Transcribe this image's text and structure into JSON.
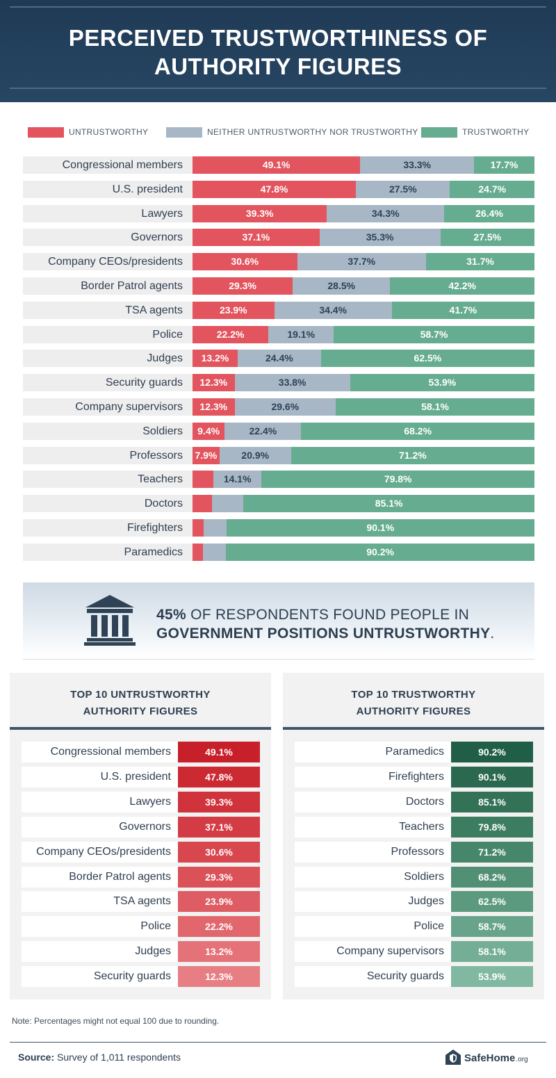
{
  "header": {
    "title_line1": "PERCEIVED TRUSTWORTHINESS OF",
    "title_line2": "AUTHORITY FIGURES"
  },
  "colors": {
    "untrustworthy": "#e2545e",
    "neither": "#a8b7c5",
    "trustworthy": "#66ac91",
    "header": "#1f3a55"
  },
  "chart_data": {
    "type": "bar",
    "orientation": "horizontal",
    "stacked": true,
    "unit": "%",
    "categories": [
      "Congressional members",
      "U.S. president",
      "Lawyers",
      "Governors",
      "Company CEOs/presidents",
      "Border Patrol agents",
      "TSA agents",
      "Police",
      "Judges",
      "Security guards",
      "Company supervisors",
      "Soldiers",
      "Professors",
      "Teachers",
      "Doctors",
      "Firefighters",
      "Paramedics"
    ],
    "series": [
      {
        "name": "UNTRUSTWORTHY",
        "color": "#e2545e",
        "values": [
          49.1,
          47.8,
          39.3,
          37.1,
          30.6,
          29.3,
          23.9,
          22.2,
          13.2,
          12.3,
          12.3,
          9.4,
          7.9,
          6.1,
          5.6,
          3.2,
          3.0
        ],
        "labels": [
          "49.1%",
          "47.8%",
          "39.3%",
          "37.1%",
          "30.6%",
          "29.3%",
          "23.9%",
          "22.2%",
          "13.2%",
          "12.3%",
          "12.3%",
          "9.4%",
          "7.9%",
          "",
          "",
          "",
          ""
        ]
      },
      {
        "name": "NEITHER UNTRUSTWORTHY NOR TRUSTWORTHY",
        "color": "#a8b7c5",
        "values": [
          33.3,
          27.5,
          34.3,
          35.3,
          37.7,
          28.5,
          34.4,
          19.1,
          24.4,
          33.8,
          29.6,
          22.4,
          20.9,
          14.1,
          9.3,
          6.7,
          6.8
        ],
        "labels": [
          "33.3%",
          "27.5%",
          "34.3%",
          "35.3%",
          "37.7%",
          "28.5%",
          "34.4%",
          "19.1%",
          "24.4%",
          "33.8%",
          "29.6%",
          "22.4%",
          "20.9%",
          "14.1%",
          "",
          "",
          ""
        ]
      },
      {
        "name": "TRUSTWORTHY",
        "color": "#66ac91",
        "values": [
          17.7,
          24.7,
          26.4,
          27.5,
          31.7,
          42.2,
          41.7,
          58.7,
          62.5,
          53.9,
          58.1,
          68.2,
          71.2,
          79.8,
          85.1,
          90.1,
          90.2
        ],
        "labels": [
          "17.7%",
          "24.7%",
          "26.4%",
          "27.5%",
          "31.7%",
          "42.2%",
          "41.7%",
          "58.7%",
          "62.5%",
          "53.9%",
          "58.1%",
          "68.2%",
          "71.2%",
          "79.8%",
          "85.1%",
          "90.1%",
          "90.2%"
        ]
      }
    ],
    "legend_position": "top"
  },
  "banner": {
    "icon": "government-building-icon",
    "pct": "45%",
    "text1": " OF RESPONDENTS  FOUND PEOPLE IN",
    "text2_bold": "GOVERNMENT POSITIONS UNTRUSTWORTHY",
    "text2_end": "."
  },
  "top_untrustworthy": {
    "title_line1": "TOP 10 UNTRUSTWORTHY",
    "title_line2": "AUTHORITY FIGURES",
    "items": [
      {
        "label": "Congressional members",
        "value": "49.1%",
        "color": "#c8202a"
      },
      {
        "label": "U.S. president",
        "value": "47.8%",
        "color": "#cc2a33"
      },
      {
        "label": "Lawyers",
        "value": "39.3%",
        "color": "#d0333c"
      },
      {
        "label": "Governors",
        "value": "37.1%",
        "color": "#d43c45"
      },
      {
        "label": "Company CEOs/presidents",
        "value": "30.6%",
        "color": "#d8464e"
      },
      {
        "label": "Border Patrol agents",
        "value": "29.3%",
        "color": "#db5158"
      },
      {
        "label": "TSA agents",
        "value": "23.9%",
        "color": "#de5c63"
      },
      {
        "label": "Police",
        "value": "22.2%",
        "color": "#e1676d"
      },
      {
        "label": "Judges",
        "value": "13.2%",
        "color": "#e47278"
      },
      {
        "label": "Security guards",
        "value": "12.3%",
        "color": "#e77e83"
      }
    ]
  },
  "top_trustworthy": {
    "title_line1": "TOP 10 TRUSTWORTHY",
    "title_line2": "AUTHORITY FIGURES",
    "items": [
      {
        "label": "Paramedics",
        "value": "90.2%",
        "color": "#215e47"
      },
      {
        "label": "Firefighters",
        "value": "90.1%",
        "color": "#2a684f"
      },
      {
        "label": "Doctors",
        "value": "85.1%",
        "color": "#337257"
      },
      {
        "label": "Teachers",
        "value": "79.8%",
        "color": "#3c7c61"
      },
      {
        "label": "Professors",
        "value": "71.2%",
        "color": "#46866b"
      },
      {
        "label": "Soldiers",
        "value": "68.2%",
        "color": "#519075"
      },
      {
        "label": "Judges",
        "value": "62.5%",
        "color": "#5c9a80"
      },
      {
        "label": "Police",
        "value": "58.7%",
        "color": "#68a48b"
      },
      {
        "label": "Company supervisors",
        "value": "58.1%",
        "color": "#74ae96"
      },
      {
        "label": "Security guards",
        "value": "53.9%",
        "color": "#81b8a1"
      }
    ]
  },
  "footer": {
    "note": "Note: Percentages might not equal 100 due to rounding.",
    "source_label": "Source:",
    "source_text": " Survey of 1,011 respondents",
    "logo_icon": "house-shield-icon",
    "logo_text": "SafeHome",
    "logo_sub": ".org"
  }
}
